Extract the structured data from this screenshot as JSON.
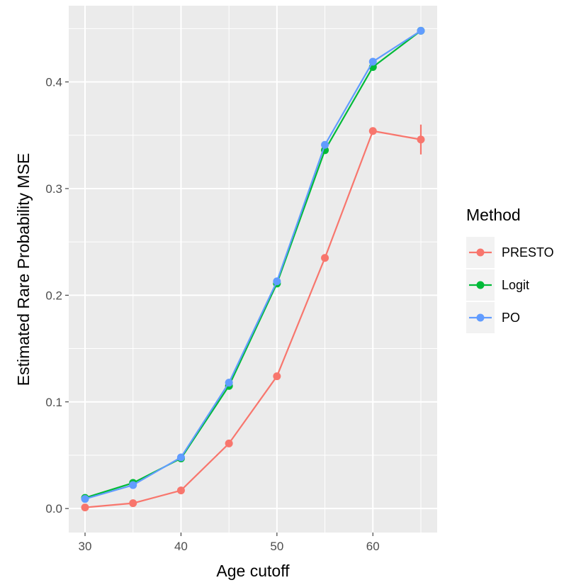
{
  "chart_data": {
    "type": "line",
    "xlabel": "Age cutoff",
    "ylabel": "Estimated Rare Probability MSE",
    "xlim": [
      28.3,
      66.7
    ],
    "ylim": [
      -0.0225,
      0.4715
    ],
    "x_ticks": [
      30,
      40,
      50,
      60
    ],
    "x_tick_labels": [
      "30",
      "40",
      "50",
      "60"
    ],
    "y_ticks": [
      0.0,
      0.1,
      0.2,
      0.3,
      0.4
    ],
    "y_tick_labels": [
      "0.0",
      "0.1",
      "0.2",
      "0.3",
      "0.4"
    ],
    "grid": true,
    "legend": {
      "title": "Method",
      "placement": "right"
    },
    "x": [
      30,
      35,
      40,
      45,
      50,
      55,
      60,
      65
    ],
    "series": [
      {
        "name": "PRESTO",
        "color": "#F8766D",
        "values": [
          0.001,
          0.005,
          0.017,
          0.061,
          0.124,
          0.235,
          0.354,
          0.346
        ],
        "error": [
          null,
          null,
          null,
          null,
          null,
          null,
          null,
          [
            0.332,
            0.36
          ]
        ]
      },
      {
        "name": "Logit",
        "color": "#00BA38",
        "values": [
          0.01,
          0.024,
          0.047,
          0.115,
          0.211,
          0.336,
          0.414,
          0.448
        ],
        "error": []
      },
      {
        "name": "PO",
        "color": "#619CFF",
        "values": [
          0.009,
          0.022,
          0.048,
          0.118,
          0.213,
          0.341,
          0.419,
          0.448
        ],
        "error": []
      }
    ]
  }
}
